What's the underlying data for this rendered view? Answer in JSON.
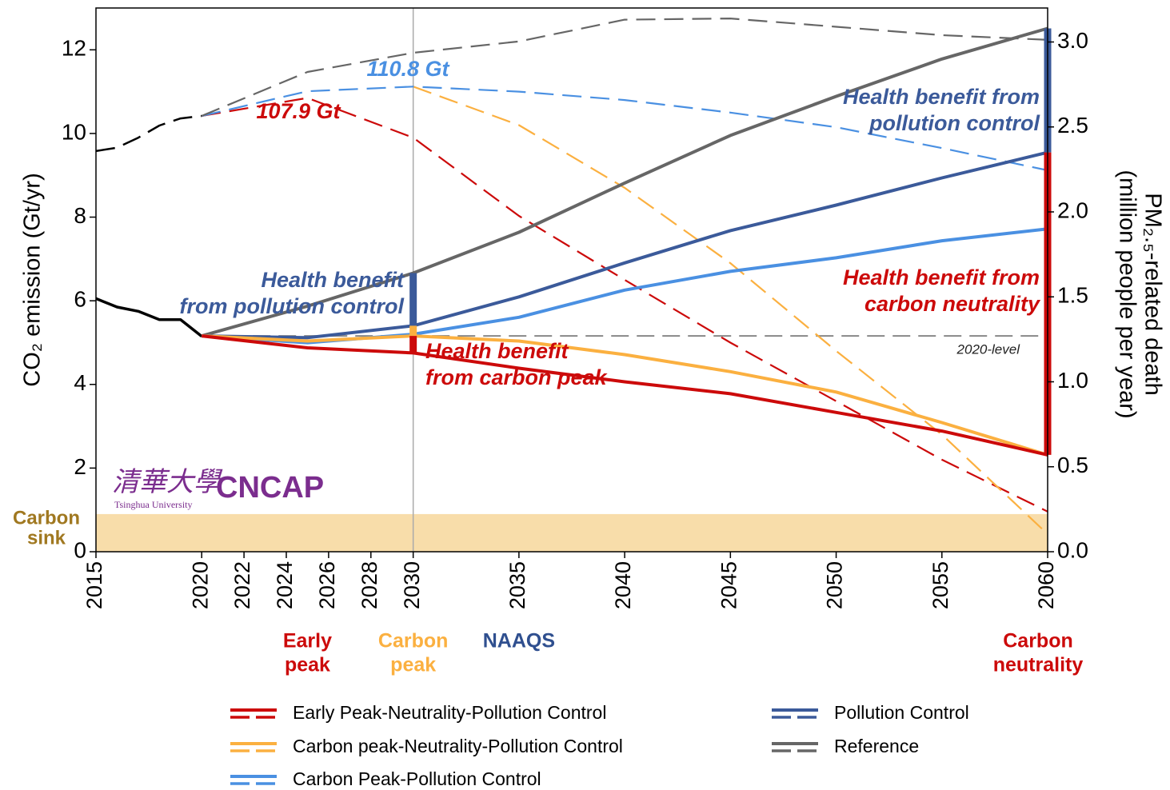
{
  "chart_data": {
    "type": "line",
    "y_label": "CO₂ emission (Gt/yr)",
    "y2_label": [
      "PM₂.₅-related death",
      "(million people per year)"
    ],
    "xlim": [
      2015,
      2060
    ],
    "xticks": [
      2015,
      2020,
      2022,
      2024,
      2026,
      2028,
      2030,
      2035,
      2040,
      2045,
      2050,
      2055,
      2060
    ],
    "ylim": [
      0,
      13
    ],
    "yticks": [
      0,
      2,
      4,
      6,
      8,
      10,
      12
    ],
    "y2lim": [
      0,
      3.2
    ],
    "y2ticks": [
      {
        "value": 0,
        "label": "0.0"
      },
      0.5,
      {
        "value": 1,
        "label": "1.0"
      },
      1.5,
      {
        "value": 2,
        "label": "2.0"
      },
      2.5,
      {
        "value": 3,
        "label": "3.0"
      }
    ],
    "history": {
      "color": "#000000",
      "x": [
        2015,
        2016,
        2017,
        2018,
        2019,
        2020
      ],
      "co2": [
        9.58,
        9.66,
        9.9,
        10.19,
        10.36,
        10.42
      ],
      "deaths": [
        1.49,
        1.44,
        1.415,
        1.366,
        1.366,
        1.268
      ]
    },
    "x": [
      2020,
      2025,
      2030,
      2035,
      2040,
      2045,
      2050,
      2055,
      2060
    ],
    "series": [
      {
        "name": "Early Peak-Neutrality-Pollution Control",
        "color": "#cc0a0a",
        "co2": [
          10.42,
          10.85,
          9.9,
          8.03,
          6.5,
          5.0,
          3.6,
          2.2,
          0.96
        ],
        "deaths": [
          1.27,
          1.2,
          1.17,
          1.08,
          1.0,
          0.93,
          0.82,
          0.71,
          0.57
        ]
      },
      {
        "name": "Carbon peak-Neutrality-Pollution Control",
        "color": "#fbb040",
        "co2": [
          null,
          null,
          11.12,
          10.2,
          8.7,
          6.9,
          4.8,
          2.8,
          0.42
        ],
        "deaths": [
          1.27,
          1.24,
          1.27,
          1.24,
          1.16,
          1.06,
          0.94,
          0.76,
          0.57
        ]
      },
      {
        "name": "Carbon Peak-Pollution Control",
        "color": "#4a90e2",
        "co2": [
          10.42,
          11.01,
          11.12,
          11.0,
          10.8,
          10.5,
          10.15,
          9.65,
          9.12
        ],
        "deaths": [
          1.27,
          1.23,
          1.28,
          1.38,
          1.54,
          1.65,
          1.73,
          1.83,
          1.9
        ]
      },
      {
        "name": "Pollution Control",
        "color": "#3b5a9a",
        "deaths": [
          1.27,
          1.26,
          1.33,
          1.5,
          1.7,
          1.89,
          2.04,
          2.2,
          2.35
        ]
      },
      {
        "name": "Reference",
        "color": "#666666",
        "co2": [
          10.42,
          11.47,
          11.93,
          12.2,
          12.72,
          12.75,
          12.55,
          12.35,
          12.24
        ],
        "deaths": [
          1.27,
          1.445,
          1.64,
          1.88,
          2.17,
          2.45,
          2.68,
          2.9,
          3.08
        ]
      }
    ],
    "annotations": [
      {
        "lines": [
          "110.8 Gt"
        ],
        "color": "#4a90e2"
      },
      {
        "lines": [
          "107.9 Gt"
        ],
        "color": "#cc0a0a"
      },
      {
        "lines": [
          "Health benefit",
          "from pollution control"
        ],
        "color": "#3b5a9a"
      },
      {
        "lines": [
          "Health benefit",
          "from carbon peak"
        ],
        "color": "#cc0a0a"
      },
      {
        "lines": [
          "Health benefit from",
          "pollution control"
        ],
        "color": "#3b5a9a"
      },
      {
        "lines": [
          "Health benefit from",
          "carbon neutrality"
        ],
        "color": "#cc0a0a"
      },
      {
        "lines": [
          "2020-level"
        ],
        "color": "#222222"
      }
    ],
    "carbon_sink": {
      "lines": [
        "Carbon",
        "sink"
      ],
      "value": 0.9,
      "color": "#a07820",
      "fill": "#f8ddaa"
    },
    "milestones": [
      {
        "lines": [
          "Early",
          "peak"
        ],
        "x": 2025,
        "color": "#cc0a0a"
      },
      {
        "lines": [
          "Carbon",
          "peak"
        ],
        "x": 2030,
        "color": "#fbb040"
      },
      {
        "lines": [
          "NAAQS"
        ],
        "x": 2035,
        "color": "#2f4f8f"
      },
      {
        "lines": [
          "Carbon",
          "neutrality"
        ],
        "x": 2060,
        "color": "#cc0a0a"
      }
    ],
    "logo": {
      "chinese": "清華大學",
      "english": "Tsinghua University",
      "acronym": "CNCAP",
      "color": "#7b2d8e"
    }
  }
}
